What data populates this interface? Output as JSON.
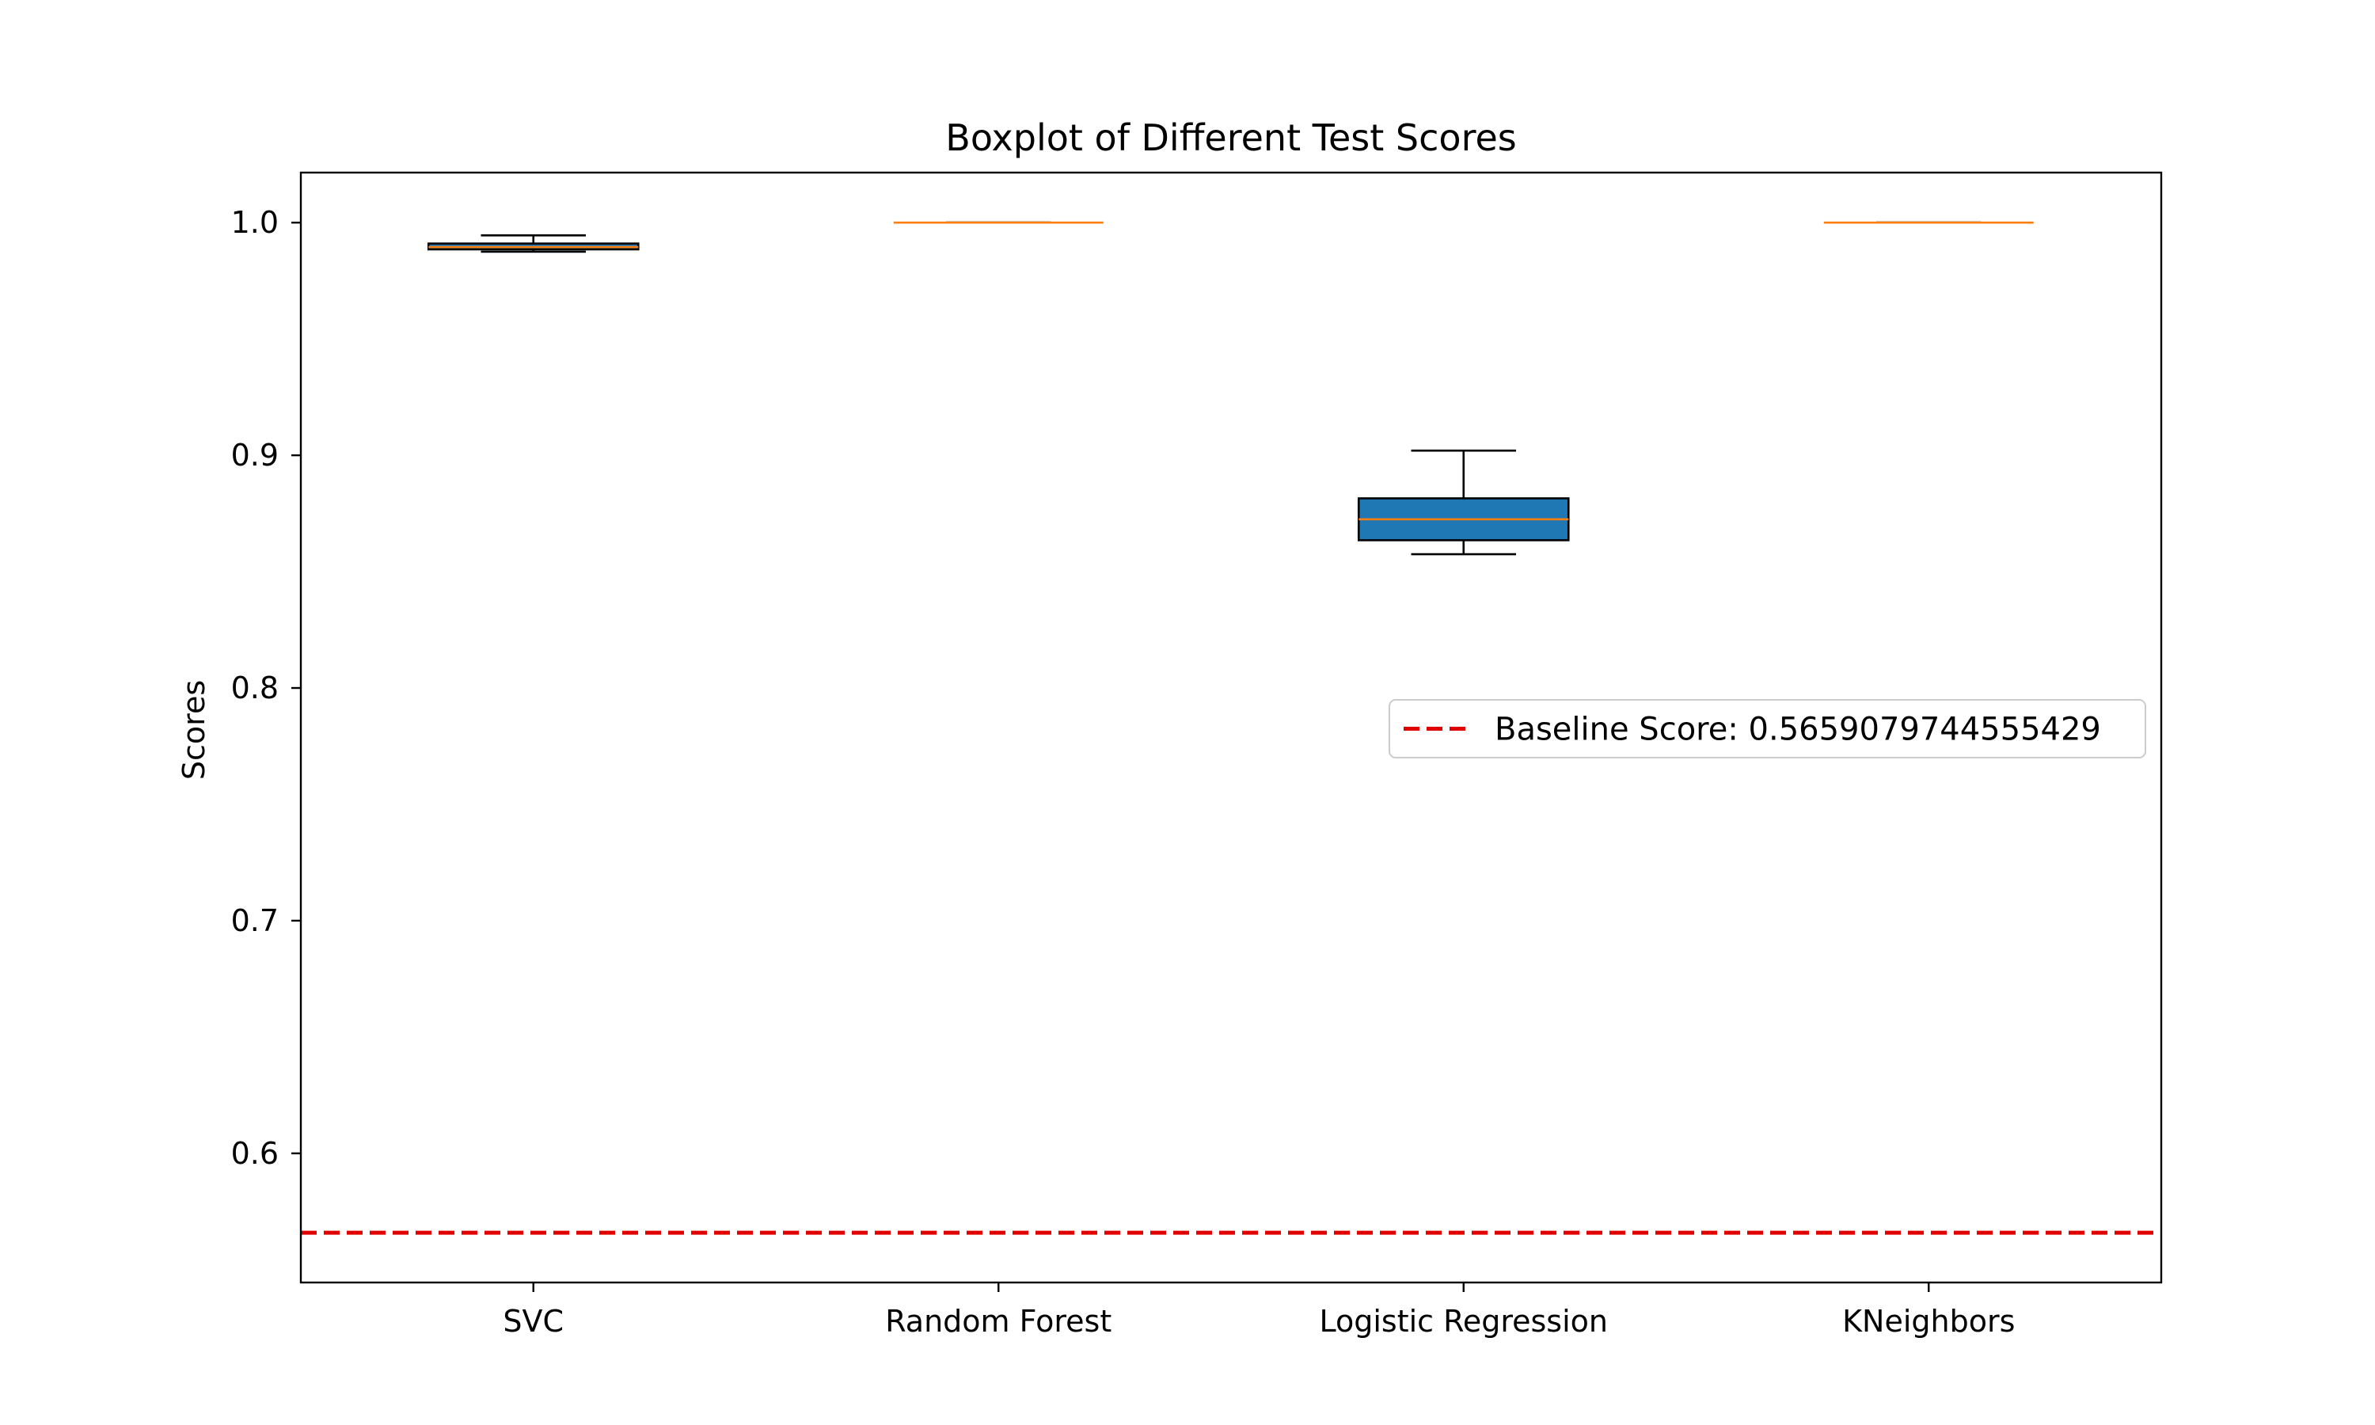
{
  "chart_data": {
    "type": "box",
    "title": "Boxplot of Different Test Scores",
    "xlabel": "",
    "ylabel": "Scores",
    "ylim": [
      0.5445,
      1.0215
    ],
    "yticks": [
      0.6,
      0.7,
      0.8,
      0.9,
      1.0
    ],
    "ytick_labels": [
      "0.6",
      "0.7",
      "0.8",
      "0.9",
      "1.0"
    ],
    "categories": [
      "SVC",
      "Random Forest",
      "Logistic Regression",
      "KNeighbors"
    ],
    "boxes": [
      {
        "label": "SVC",
        "whisker_low": 0.9875,
        "q1": 0.9885,
        "median": 0.9895,
        "q3": 0.991,
        "whisker_high": 0.9945
      },
      {
        "label": "Random Forest",
        "whisker_low": 1.0,
        "q1": 1.0,
        "median": 1.0,
        "q3": 1.0,
        "whisker_high": 1.0
      },
      {
        "label": "Logistic Regression",
        "whisker_low": 0.8575,
        "q1": 0.8635,
        "median": 0.8725,
        "q3": 0.8815,
        "whisker_high": 0.902
      },
      {
        "label": "KNeighbors",
        "whisker_low": 1.0,
        "q1": 1.0,
        "median": 1.0,
        "q3": 1.0,
        "whisker_high": 1.0
      }
    ],
    "baseline": {
      "value": 0.5659079744555429,
      "label": "Baseline Score: 0.5659079744555429",
      "color": "#e00000",
      "style": "dashed"
    },
    "legend": {
      "placement": "center-right",
      "entries": [
        "Baseline Score: 0.5659079744555429"
      ]
    },
    "grid": false,
    "colors": {
      "box_fill": "#1f77b4",
      "median": "#ff7f0e",
      "edge": "#000000",
      "baseline": "#e00000"
    }
  }
}
